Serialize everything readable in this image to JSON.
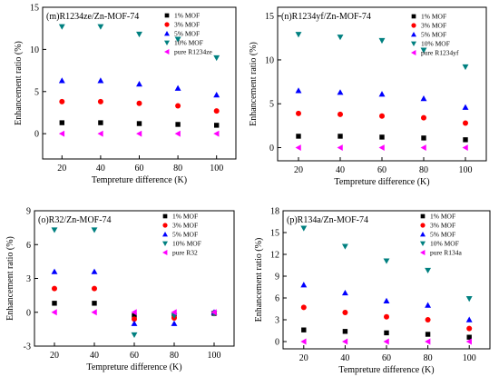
{
  "chart_data": [
    {
      "type": "scatter",
      "title": "(m)R1234ze/Zn-MOF-74",
      "xlabel": "Tempreture difference (K)",
      "ylabel": "Enhancement ratio (%)",
      "xlim": [
        10,
        110
      ],
      "ylim": [
        -3,
        15
      ],
      "x_ticks": [
        20,
        40,
        60,
        80,
        100
      ],
      "y_ticks": [
        0,
        5,
        10,
        15
      ],
      "legend_position": "top-right",
      "series": [
        {
          "name": "1% MOF",
          "marker": "square",
          "color": "#000000",
          "x": [
            20,
            40,
            60,
            80,
            100
          ],
          "y": [
            1.3,
            1.3,
            1.2,
            1.1,
            1.0
          ]
        },
        {
          "name": "3% MOF",
          "marker": "circle",
          "color": "#ff0000",
          "x": [
            20,
            40,
            60,
            80,
            100
          ],
          "y": [
            3.8,
            3.8,
            3.6,
            3.3,
            2.7
          ]
        },
        {
          "name": "5% MOF",
          "marker": "triangle-up",
          "color": "#0000ff",
          "x": [
            20,
            40,
            60,
            80,
            100
          ],
          "y": [
            6.3,
            6.3,
            5.9,
            5.4,
            4.6
          ]
        },
        {
          "name": "10% MOF",
          "marker": "triangle-down",
          "color": "#008080",
          "x": [
            20,
            40,
            60,
            80,
            100
          ],
          "y": [
            12.7,
            12.7,
            11.8,
            11.2,
            9.0
          ]
        },
        {
          "name": "pure R1234ze",
          "marker": "triangle-left",
          "color": "#ff00ff",
          "x": [
            20,
            40,
            60,
            80,
            100
          ],
          "y": [
            0,
            0,
            0,
            0,
            0
          ]
        }
      ]
    },
    {
      "type": "scatter",
      "title": "(n)R1234yf/Zn-MOF-74",
      "xlabel": "Tempreture difference (K)",
      "ylabel": "Enhancement ratio (%)",
      "xlim": [
        10,
        110
      ],
      "ylim": [
        -1.5,
        16
      ],
      "x_ticks": [
        20,
        40,
        60,
        80,
        100
      ],
      "y_ticks": [
        0,
        5,
        10,
        15
      ],
      "legend_position": "top-right",
      "series": [
        {
          "name": "1% MOF",
          "marker": "square",
          "color": "#000000",
          "x": [
            20,
            40,
            60,
            80,
            100
          ],
          "y": [
            1.3,
            1.3,
            1.2,
            1.1,
            0.9
          ]
        },
        {
          "name": "3% MOF",
          "marker": "circle",
          "color": "#ff0000",
          "x": [
            20,
            40,
            60,
            80,
            100
          ],
          "y": [
            3.9,
            3.8,
            3.6,
            3.4,
            2.8
          ]
        },
        {
          "name": "5% MOF",
          "marker": "triangle-up",
          "color": "#0000ff",
          "x": [
            20,
            40,
            60,
            80,
            100
          ],
          "y": [
            6.5,
            6.3,
            6.1,
            5.6,
            4.6
          ]
        },
        {
          "name": "10% MOF",
          "marker": "triangle-down",
          "color": "#008080",
          "x": [
            20,
            40,
            60,
            80,
            100
          ],
          "y": [
            12.9,
            12.6,
            12.2,
            11.1,
            9.2
          ]
        },
        {
          "name": "pure R1234yf",
          "marker": "triangle-left",
          "color": "#ff00ff",
          "x": [
            20,
            40,
            60,
            80,
            100
          ],
          "y": [
            0,
            0,
            0,
            0,
            0
          ]
        }
      ]
    },
    {
      "type": "scatter",
      "title": "(o)R32/Zn-MOF-74",
      "xlabel": "Tempreture difference (K)",
      "ylabel": "Enhancement ratio (%)",
      "xlim": [
        10,
        110
      ],
      "ylim": [
        -3,
        9
      ],
      "x_ticks": [
        20,
        40,
        60,
        80,
        100
      ],
      "y_ticks": [
        -3,
        0,
        3,
        6,
        9
      ],
      "legend_position": "top-right",
      "series": [
        {
          "name": "1% MOF",
          "marker": "square",
          "color": "#000000",
          "x": [
            20,
            40,
            60,
            80,
            100
          ],
          "y": [
            0.8,
            0.8,
            -0.3,
            -0.3,
            -0.1
          ]
        },
        {
          "name": "3% MOF",
          "marker": "circle",
          "color": "#ff0000",
          "x": [
            20,
            40,
            60,
            80,
            100
          ],
          "y": [
            2.1,
            2.1,
            -0.6,
            -0.5,
            -0.05
          ]
        },
        {
          "name": "5% MOF",
          "marker": "triangle-up",
          "color": "#0000ff",
          "x": [
            20,
            40,
            60,
            80,
            100
          ],
          "y": [
            3.6,
            3.6,
            -1.0,
            -1.0,
            0
          ]
        },
        {
          "name": "10% MOF",
          "marker": "triangle-down",
          "color": "#008080",
          "x": [
            20,
            40,
            60,
            80,
            100
          ],
          "y": [
            7.3,
            7.3,
            -2.0,
            -0.3,
            -0.1
          ]
        },
        {
          "name": "pure R32",
          "marker": "triangle-left",
          "color": "#ff00ff",
          "x": [
            20,
            40,
            60,
            80,
            100
          ],
          "y": [
            0,
            0,
            0,
            0,
            0
          ]
        }
      ]
    },
    {
      "type": "scatter",
      "title": "(p)R134a/Zn-MOF-74",
      "xlabel": "Tempreture difference (K)",
      "ylabel": "Enhancement ratio (%)",
      "xlim": [
        10,
        110
      ],
      "ylim": [
        -1,
        18
      ],
      "x_ticks": [
        20,
        40,
        60,
        80,
        100
      ],
      "y_ticks": [
        0,
        3,
        6,
        9,
        12,
        15,
        18
      ],
      "legend_position": "top-right",
      "series": [
        {
          "name": "1% MOF",
          "marker": "square",
          "color": "#000000",
          "x": [
            20,
            40,
            60,
            80,
            100
          ],
          "y": [
            1.6,
            1.4,
            1.2,
            1.0,
            0.6
          ]
        },
        {
          "name": "3% MOF",
          "marker": "circle",
          "color": "#ff0000",
          "x": [
            20,
            40,
            60,
            80,
            100
          ],
          "y": [
            4.7,
            4.0,
            3.4,
            3.0,
            1.8
          ]
        },
        {
          "name": "5% MOF",
          "marker": "triangle-up",
          "color": "#0000ff",
          "x": [
            20,
            40,
            60,
            80,
            100
          ],
          "y": [
            7.8,
            6.7,
            5.6,
            5.0,
            3.0
          ]
        },
        {
          "name": "10% MOF",
          "marker": "triangle-down",
          "color": "#008080",
          "x": [
            20,
            40,
            60,
            80,
            100
          ],
          "y": [
            15.6,
            13.1,
            11.1,
            9.8,
            5.9
          ]
        },
        {
          "name": "pure R134a",
          "marker": "triangle-left",
          "color": "#ff00ff",
          "x": [
            20,
            40,
            60,
            80,
            100
          ],
          "y": [
            0,
            0,
            0,
            0,
            0
          ]
        }
      ]
    }
  ]
}
